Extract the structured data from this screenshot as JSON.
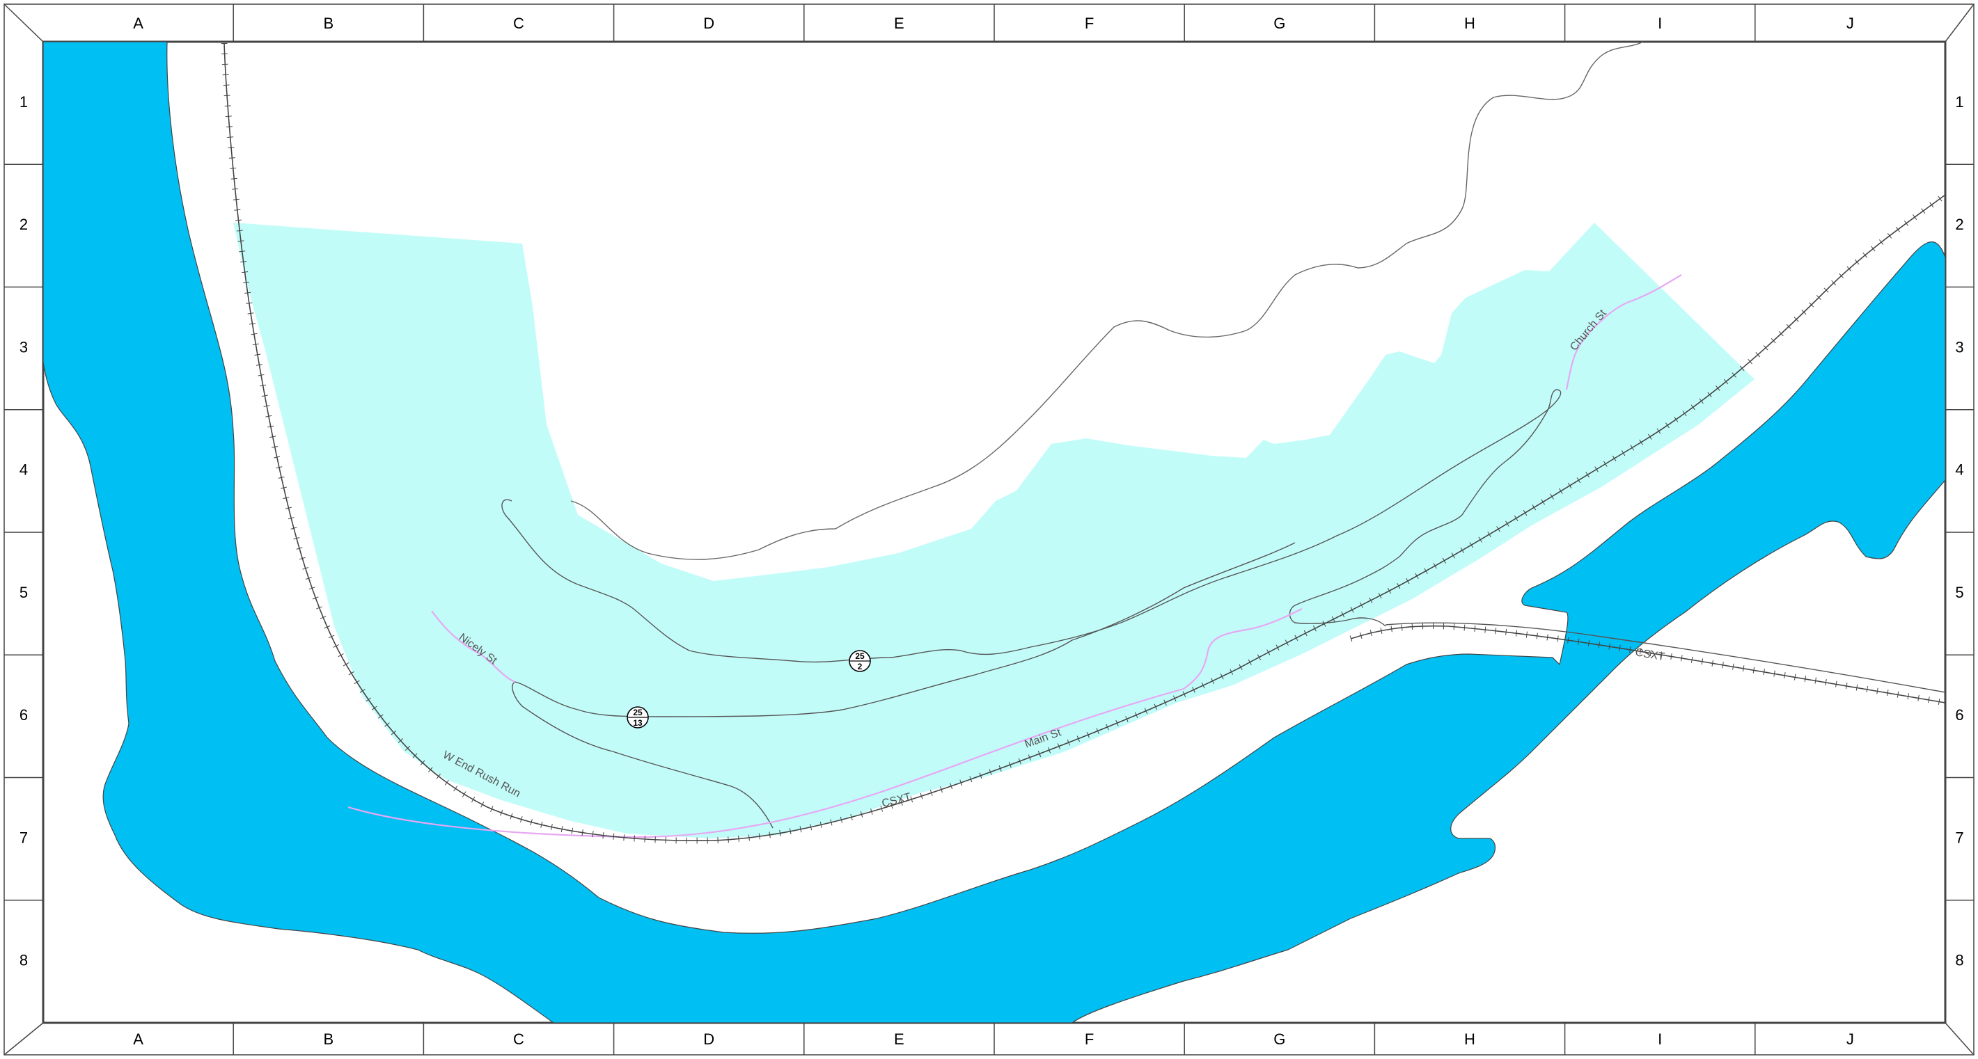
{
  "map": {
    "grid": {
      "columns": [
        "A",
        "B",
        "C",
        "D",
        "E",
        "F",
        "G",
        "H",
        "I",
        "J"
      ],
      "rows": [
        "1",
        "2",
        "3",
        "4",
        "5",
        "6",
        "7",
        "8"
      ]
    },
    "labels": {
      "nicely_st": "Nicely St",
      "church_st": "Church St",
      "main_st": "Main St",
      "w_end_rush_run": "W End Rush Run",
      "csxt_lower": "CSXT",
      "csxt_right": "CSXT"
    },
    "shields": [
      {
        "route": "25",
        "sub": "2"
      },
      {
        "route": "25",
        "sub": "13"
      }
    ],
    "colors": {
      "water": "#00bff3",
      "zone": "#c2fcf9",
      "street_highlight": "#e7a7f3"
    }
  }
}
